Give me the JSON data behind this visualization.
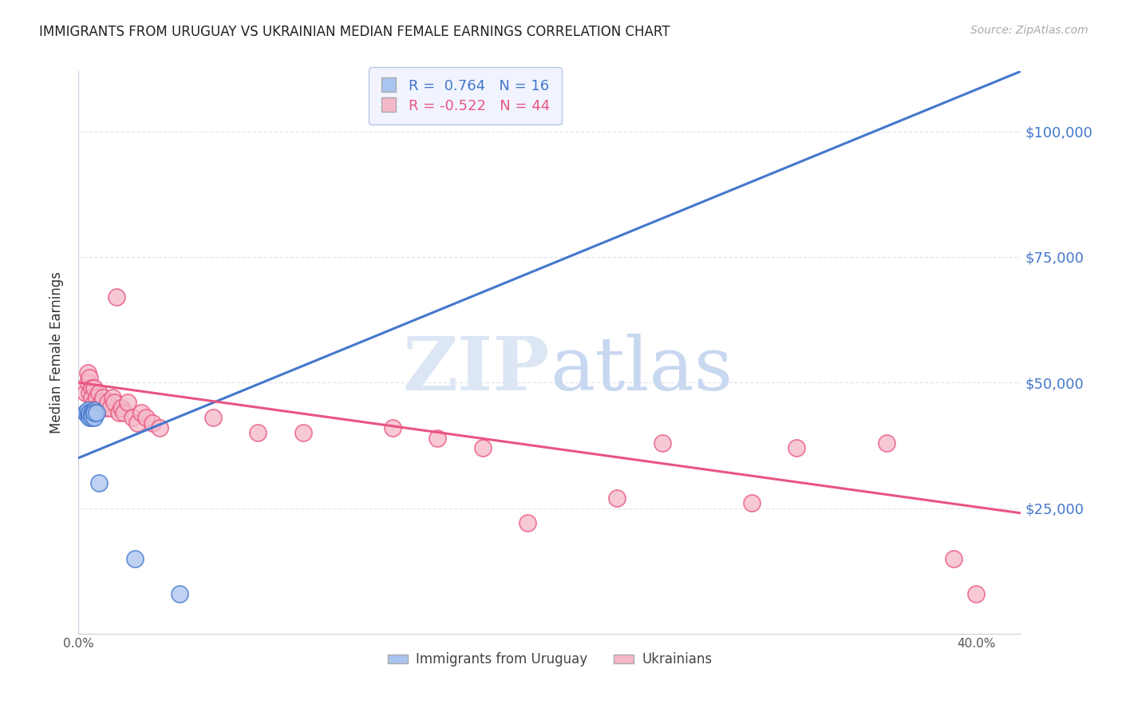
{
  "title": "IMMIGRANTS FROM URUGUAY VS UKRAINIAN MEDIAN FEMALE EARNINGS CORRELATION CHART",
  "source": "Source: ZipAtlas.com",
  "ylabel": "Median Female Earnings",
  "xlim": [
    0.0,
    0.42
  ],
  "ylim": [
    0,
    112000
  ],
  "background_color": "#ffffff",
  "grid_color": "#e2e6f0",
  "uruguay_fill": "#aac4f0",
  "uruguay_edge": "#4477cc",
  "ukraine_fill": "#f5b8c8",
  "ukraine_edge": "#e85580",
  "right_label_color": "#4477cc",
  "watermark_zip_color": "#dce6f5",
  "watermark_atlas_color": "#c8d8f0",
  "legend_face": "#eef2ff",
  "legend_edge": "#aabbdd",
  "R_uruguay": "0.764",
  "N_uruguay": "16",
  "R_ukraine": "-0.522",
  "N_ukraine": "44",
  "uru_trend_x0": 0.0,
  "uru_trend_y0": 35000,
  "uru_trend_x1": 0.42,
  "uru_trend_y1": 112000,
  "ukr_trend_x0": 0.0,
  "ukr_trend_y0": 50000,
  "ukr_trend_x1": 0.42,
  "ukr_trend_y1": 24000,
  "uruguay_x": [
    0.003,
    0.004,
    0.004,
    0.005,
    0.005,
    0.005,
    0.006,
    0.006,
    0.006,
    0.007,
    0.007,
    0.007,
    0.008,
    0.009,
    0.025,
    0.045
  ],
  "uruguay_y": [
    44000,
    43500,
    44500,
    44000,
    43000,
    44000,
    44000,
    43500,
    43000,
    44500,
    43000,
    44000,
    44000,
    30000,
    15000,
    8000
  ],
  "ukraine_x": [
    0.003,
    0.004,
    0.004,
    0.005,
    0.005,
    0.006,
    0.006,
    0.007,
    0.007,
    0.008,
    0.008,
    0.009,
    0.01,
    0.011,
    0.012,
    0.013,
    0.014,
    0.015,
    0.016,
    0.017,
    0.018,
    0.019,
    0.02,
    0.022,
    0.024,
    0.026,
    0.028,
    0.03,
    0.033,
    0.036,
    0.06,
    0.08,
    0.1,
    0.14,
    0.16,
    0.18,
    0.2,
    0.24,
    0.26,
    0.3,
    0.32,
    0.36,
    0.39,
    0.4
  ],
  "ukraine_y": [
    48000,
    50000,
    52000,
    51000,
    48000,
    49000,
    47000,
    49000,
    46000,
    47000,
    45000,
    48000,
    46000,
    47000,
    45000,
    46000,
    45000,
    47000,
    46000,
    67000,
    44000,
    45000,
    44000,
    46000,
    43000,
    42000,
    44000,
    43000,
    42000,
    41000,
    43000,
    40000,
    40000,
    41000,
    39000,
    37000,
    22000,
    27000,
    38000,
    26000,
    37000,
    38000,
    15000,
    8000
  ]
}
